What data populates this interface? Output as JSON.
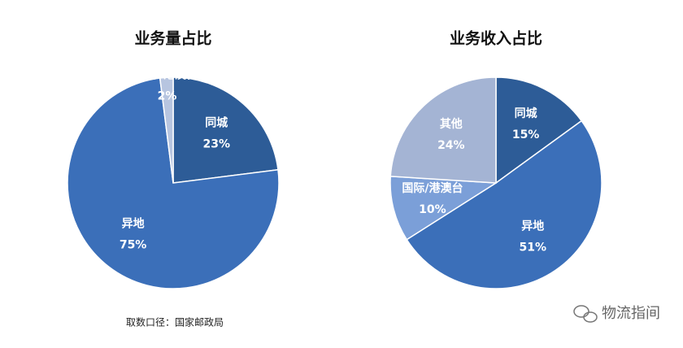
{
  "chart_data": [
    {
      "type": "pie",
      "title": "业务量占比",
      "categories": [
        "同城",
        "异地",
        "国际/港澳台"
      ],
      "values": [
        23,
        75,
        2
      ],
      "value_labels": [
        "23%",
        "75%",
        "2%"
      ],
      "colors": [
        "#2d5c97",
        "#3b6fb9",
        "#b7c5e0"
      ]
    },
    {
      "type": "pie",
      "title": "业务收入占比",
      "categories": [
        "同城",
        "异地",
        "国际/港澳台",
        "其他"
      ],
      "values": [
        15,
        51,
        10,
        24
      ],
      "value_labels": [
        "15%",
        "51%",
        "10%",
        "24%"
      ],
      "colors": [
        "#2d5c97",
        "#3b6fb9",
        "#7b9fd8",
        "#a4b4d4"
      ]
    }
  ],
  "source": "取数口径：国家邮政局",
  "watermark": "物流指间"
}
